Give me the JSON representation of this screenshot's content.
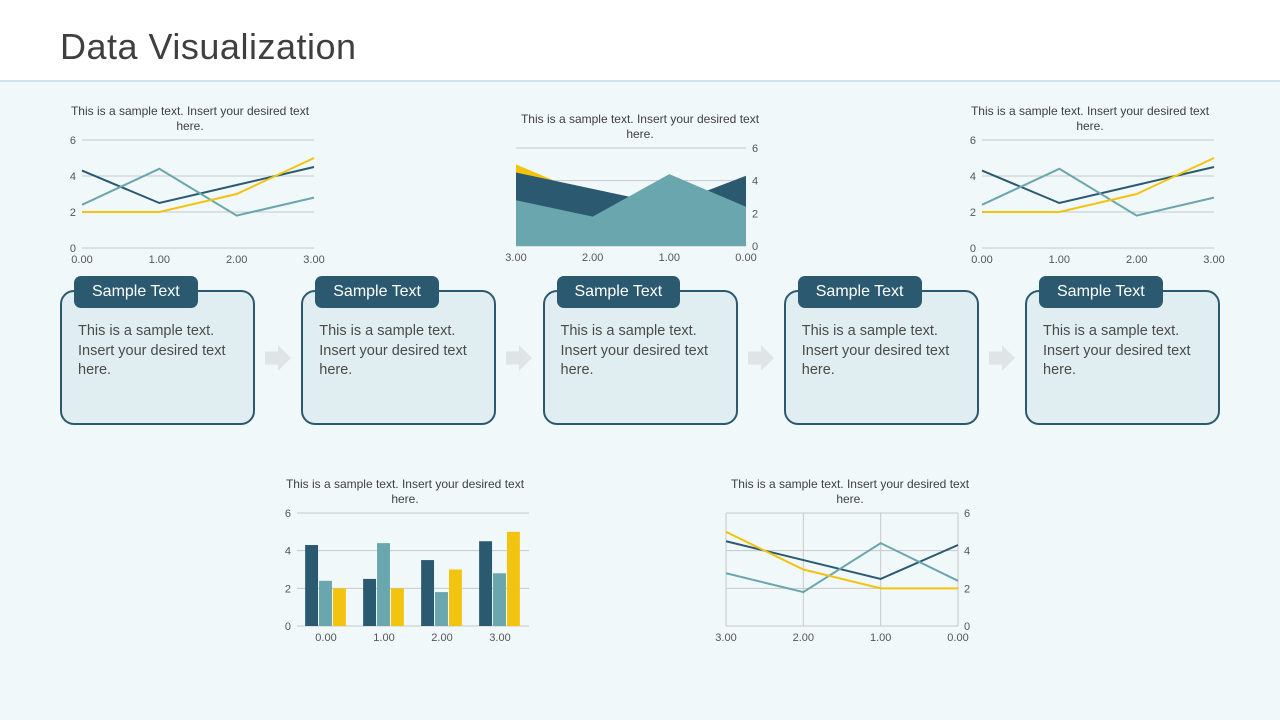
{
  "title": "Data Visualization",
  "chart_caption": "This is a sample text. Insert your desired text here.",
  "colors": {
    "dark": "#2b5a70",
    "teal": "#6aa6ad",
    "yellow": "#f3c40f",
    "grid": "#c9c9c9",
    "axis": "#9a9a9a",
    "box_bg": "#e1eef1",
    "arrow": "#dfe5e6",
    "page_bg": "#f1f8fa"
  },
  "line_chart": {
    "type": "line",
    "xlim": [
      0,
      3
    ],
    "ylim": [
      0,
      6
    ],
    "xticks": [
      "0.00",
      "1.00",
      "2.00",
      "3.00"
    ],
    "yticks": [
      0,
      2,
      4,
      6
    ],
    "series": [
      {
        "name": "dark",
        "color": "#2b5a70",
        "y": [
          4.3,
          2.5,
          3.5,
          4.5
        ]
      },
      {
        "name": "teal",
        "color": "#6aa6ad",
        "y": [
          2.4,
          4.4,
          1.8,
          2.8
        ]
      },
      {
        "name": "yellow",
        "color": "#f3c40f",
        "y": [
          2.0,
          2.0,
          3.0,
          5.0
        ]
      }
    ],
    "line_width": 2
  },
  "area_chart": {
    "type": "area",
    "xlim": [
      3,
      0
    ],
    "ylim": [
      0,
      6
    ],
    "xticks": [
      "3.00",
      "2.00",
      "1.00",
      "0.00"
    ],
    "yticks": [
      0,
      2,
      4,
      6
    ],
    "y_axis_side": "right",
    "series": [
      {
        "name": "yellow",
        "color": "#f3c40f",
        "y": [
          5.0,
          3.0,
          2.0,
          2.0
        ]
      },
      {
        "name": "dark",
        "color": "#2b5a70",
        "y": [
          4.5,
          3.5,
          2.5,
          4.3
        ]
      },
      {
        "name": "teal",
        "color": "#6aa6ad",
        "y": [
          2.8,
          1.8,
          4.4,
          2.4
        ]
      }
    ]
  },
  "bar_chart": {
    "type": "bar_grouped",
    "xlim": [
      0,
      3
    ],
    "ylim": [
      0,
      6
    ],
    "xticks": [
      "0.00",
      "1.00",
      "2.00",
      "3.00"
    ],
    "yticks": [
      0,
      2,
      4,
      6
    ],
    "groups": [
      {
        "x": "0.00",
        "bars": [
          {
            "c": "#2b5a70",
            "v": 4.3
          },
          {
            "c": "#6aa6ad",
            "v": 2.4
          },
          {
            "c": "#f3c40f",
            "v": 2.0
          }
        ]
      },
      {
        "x": "1.00",
        "bars": [
          {
            "c": "#2b5a70",
            "v": 2.5
          },
          {
            "c": "#6aa6ad",
            "v": 4.4
          },
          {
            "c": "#f3c40f",
            "v": 2.0
          }
        ]
      },
      {
        "x": "2.00",
        "bars": [
          {
            "c": "#2b5a70",
            "v": 3.5
          },
          {
            "c": "#6aa6ad",
            "v": 1.8
          },
          {
            "c": "#f3c40f",
            "v": 3.0
          }
        ]
      },
      {
        "x": "3.00",
        "bars": [
          {
            "c": "#2b5a70",
            "v": 4.5
          },
          {
            "c": "#6aa6ad",
            "v": 2.8
          },
          {
            "c": "#f3c40f",
            "v": 5.0
          }
        ]
      }
    ],
    "bar_width": 0.24
  },
  "line_chart_right_axis": {
    "type": "line",
    "xlim": [
      3,
      0
    ],
    "ylim": [
      0,
      6
    ],
    "xticks": [
      "3.00",
      "2.00",
      "1.00",
      "0.00"
    ],
    "yticks": [
      0,
      2,
      4,
      6
    ],
    "y_axis_side": "right",
    "grid": true,
    "series": [
      {
        "name": "dark",
        "color": "#2b5a70",
        "y": [
          4.5,
          3.5,
          2.5,
          4.3
        ]
      },
      {
        "name": "teal",
        "color": "#6aa6ad",
        "y": [
          2.8,
          1.8,
          4.4,
          2.4
        ]
      },
      {
        "name": "yellow",
        "color": "#f3c40f",
        "y": [
          5.0,
          3.0,
          2.0,
          2.0
        ]
      }
    ],
    "line_width": 2
  },
  "flow": {
    "label": "Sample Text",
    "body": "This is a sample text. Insert your desired text here.",
    "count": 5
  }
}
